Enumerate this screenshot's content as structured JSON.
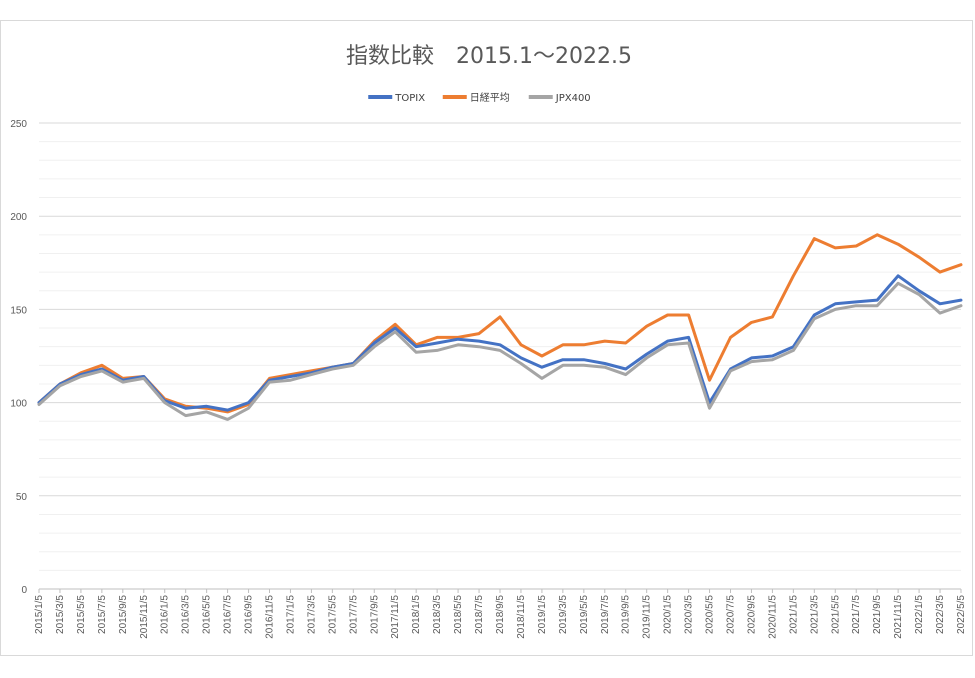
{
  "chart_data": {
    "type": "line",
    "title": "指数比較　2015.1～2022.5",
    "xlabel": "",
    "ylabel": "",
    "ylim": [
      0,
      250
    ],
    "yticks": [
      "0",
      "50",
      "100",
      "150",
      "200",
      "250"
    ],
    "xticks": [
      "2015/1/5",
      "2015/3/5",
      "2015/5/5",
      "2015/7/5",
      "2015/9/5",
      "2015/11/5",
      "2016/1/5",
      "2016/3/5",
      "2016/5/5",
      "2016/7/5",
      "2016/9/5",
      "2016/11/5",
      "2017/1/5",
      "2017/3/5",
      "2017/5/5",
      "2017/7/5",
      "2017/9/5",
      "2017/11/5",
      "2018/1/5",
      "2018/3/5",
      "2018/5/5",
      "2018/7/5",
      "2018/9/5",
      "2018/11/5",
      "2019/1/5",
      "2019/3/5",
      "2019/5/5",
      "2019/7/5",
      "2019/9/5",
      "2019/11/5",
      "2020/1/5",
      "2020/3/5",
      "2020/5/5",
      "2020/7/5",
      "2020/9/5",
      "2020/11/5",
      "2021/1/5",
      "2021/3/5",
      "2021/5/5",
      "2021/7/5",
      "2021/9/5",
      "2021/11/5",
      "2022/1/5",
      "2022/3/5",
      "2022/5/5"
    ],
    "grid": true,
    "legend_position": "top",
    "series": [
      {
        "name": "TOPIX",
        "color": "#4472c4",
        "values": [
          100,
          110,
          115,
          118,
          112,
          114,
          101,
          97,
          98,
          96,
          100,
          112,
          114,
          116,
          119,
          121,
          132,
          140,
          130,
          132,
          134,
          133,
          131,
          124,
          119,
          123,
          123,
          121,
          118,
          126,
          133,
          135,
          100,
          118,
          124,
          125,
          130,
          147,
          153,
          154,
          155,
          168,
          160,
          153,
          155
        ]
      },
      {
        "name": "日経平均",
        "color": "#ed7d31",
        "values": [
          100,
          110,
          116,
          120,
          113,
          114,
          102,
          98,
          97,
          95,
          99,
          113,
          115,
          117,
          119,
          121,
          133,
          142,
          131,
          135,
          135,
          137,
          146,
          131,
          125,
          131,
          131,
          133,
          132,
          141,
          147,
          147,
          112,
          135,
          143,
          146,
          168,
          188,
          183,
          184,
          190,
          185,
          178,
          170,
          174
        ]
      },
      {
        "name": "JPX400",
        "color": "#a5a5a5",
        "values": [
          99,
          109,
          114,
          117,
          111,
          113,
          100,
          93,
          95,
          91,
          97,
          111,
          112,
          115,
          118,
          120,
          130,
          138,
          127,
          128,
          131,
          130,
          128,
          121,
          113,
          120,
          120,
          119,
          115,
          124,
          131,
          132,
          97,
          117,
          122,
          123,
          128,
          145,
          150,
          152,
          152,
          164,
          158,
          148,
          152
        ]
      }
    ]
  }
}
